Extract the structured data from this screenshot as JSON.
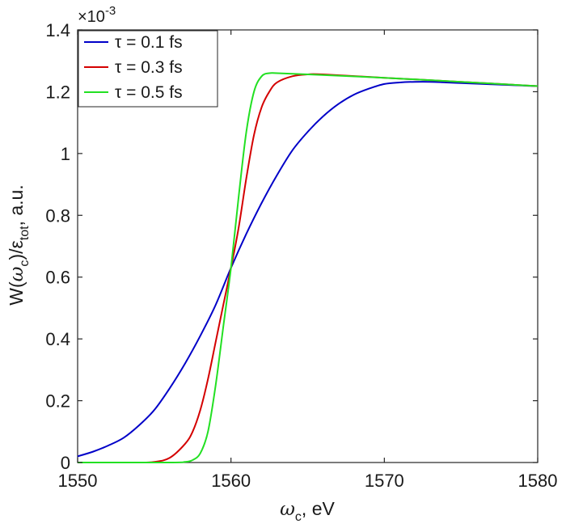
{
  "chart_data": {
    "type": "line",
    "xlabel_symbol": "ω",
    "xlabel_sub": "c",
    "xlabel_unit": ", eV",
    "ylabel_prefix": "W(",
    "ylabel_symbol": "ω",
    "ylabel_sub": "c",
    "ylabel_mid": ")/ε",
    "ylabel_sub2": "tot",
    "ylabel_unit": ", a.u.",
    "xlim": [
      1550,
      1580
    ],
    "ylim": [
      0,
      1.4
    ],
    "y_multiplier_base": "×10",
    "y_multiplier_exp": "-3",
    "xticks": [
      "1550",
      "1560",
      "1570",
      "1580"
    ],
    "yticks": [
      "0",
      "0.2",
      "0.4",
      "0.6",
      "0.8",
      "1",
      "1.2",
      "1.4"
    ],
    "grid": false,
    "legend_position": "top-left",
    "series": [
      {
        "name": "τ = 0.1 fs",
        "color": "#0000c8",
        "x": [
          1550,
          1551,
          1552,
          1553,
          1554,
          1555,
          1556,
          1557,
          1558,
          1559,
          1560,
          1561,
          1562,
          1563,
          1564,
          1565,
          1566,
          1567,
          1568,
          1569,
          1570,
          1571,
          1572,
          1573,
          1574,
          1575,
          1576,
          1577,
          1578,
          1579,
          1580
        ],
        "values": [
          0.02,
          0.035,
          0.055,
          0.08,
          0.12,
          0.17,
          0.24,
          0.32,
          0.41,
          0.51,
          0.63,
          0.74,
          0.84,
          0.93,
          1.01,
          1.07,
          1.12,
          1.16,
          1.19,
          1.21,
          1.225,
          1.23,
          1.232,
          1.232,
          1.23,
          1.228,
          1.226,
          1.224,
          1.222,
          1.22,
          1.218
        ]
      },
      {
        "name": "τ = 0.3 fs",
        "color": "#d40000",
        "x": [
          1550,
          1554,
          1555,
          1556,
          1557,
          1557.5,
          1558,
          1558.5,
          1559,
          1559.5,
          1560,
          1560.5,
          1561,
          1561.5,
          1562,
          1562.5,
          1563,
          1564,
          1565,
          1566,
          1570,
          1575,
          1580
        ],
        "values": [
          0,
          0,
          0.002,
          0.015,
          0.06,
          0.1,
          0.17,
          0.27,
          0.39,
          0.51,
          0.63,
          0.76,
          0.92,
          1.06,
          1.15,
          1.2,
          1.23,
          1.25,
          1.256,
          1.256,
          1.245,
          1.232,
          1.218
        ]
      },
      {
        "name": "τ = 0.5 fs",
        "color": "#22e022",
        "x": [
          1550,
          1556,
          1557,
          1557.5,
          1558,
          1558.5,
          1559,
          1559.5,
          1560,
          1560.5,
          1561,
          1561.5,
          1562,
          1562.5,
          1563,
          1565,
          1570,
          1575,
          1580
        ],
        "values": [
          0,
          0,
          0.002,
          0.008,
          0.03,
          0.1,
          0.25,
          0.44,
          0.63,
          0.86,
          1.07,
          1.2,
          1.25,
          1.26,
          1.26,
          1.256,
          1.245,
          1.232,
          1.218
        ]
      }
    ]
  }
}
